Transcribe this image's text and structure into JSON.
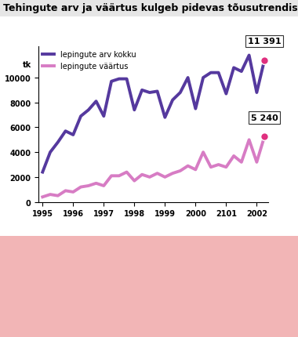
{
  "chart_data": {
    "type": "line",
    "title": "Tehingute arv ja väärtus kulgeb pidevas tõusutrendis",
    "y_label": "tk",
    "categories": [
      "1995",
      null,
      null,
      null,
      "1996",
      null,
      null,
      null,
      "1997",
      null,
      null,
      null,
      "1998",
      null,
      null,
      null,
      "1999",
      null,
      null,
      null,
      "2000",
      null,
      null,
      null,
      "2101",
      null,
      null,
      null,
      "2002",
      null
    ],
    "series": [
      {
        "name": "lepingute arv kokku",
        "color": "#55399e",
        "values": [
          2400,
          4000,
          4800,
          5700,
          5400,
          6900,
          7400,
          8100,
          6900,
          9700,
          9900,
          9900,
          7400,
          9000,
          8800,
          8900,
          6800,
          8200,
          8800,
          10000,
          7500,
          10000,
          10400,
          10400,
          8700,
          10800,
          10500,
          11800,
          8800,
          11391
        ],
        "value_labels": [
          null,
          null,
          null,
          null,
          null,
          null,
          null,
          null,
          null,
          null,
          null,
          null,
          null,
          null,
          null,
          null,
          null,
          null,
          null,
          null,
          null,
          null,
          null,
          null,
          null,
          null,
          null,
          null,
          null,
          "11 391"
        ]
      },
      {
        "name": "lepingute väärtus",
        "color": "#d77cc4",
        "values": [
          400,
          600,
          500,
          900,
          800,
          1200,
          1300,
          1500,
          1300,
          2100,
          2100,
          2400,
          1700,
          2200,
          2000,
          2300,
          2000,
          2300,
          2500,
          2900,
          2600,
          4000,
          2800,
          3000,
          2800,
          3700,
          3200,
          5000,
          3200,
          5240
        ],
        "value_labels": [
          null,
          null,
          null,
          null,
          null,
          null,
          null,
          null,
          null,
          null,
          null,
          null,
          null,
          null,
          null,
          null,
          null,
          null,
          null,
          null,
          null,
          null,
          null,
          null,
          null,
          null,
          null,
          null,
          null,
          "5 240"
        ]
      }
    ],
    "ylim": [
      0,
      12500
    ],
    "yticks": [
      0,
      2000,
      4000,
      6000,
      8000,
      10000
    ],
    "grid": false,
    "legend": "upper left"
  }
}
